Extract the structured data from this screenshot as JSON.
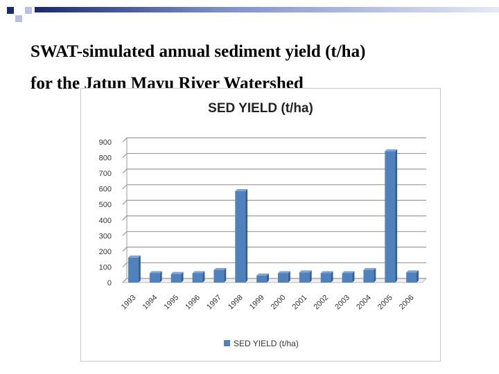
{
  "slide": {
    "title_line1": "SWAT-simulated annual sediment yield (t/ha)",
    "title_line2": "for the Jatun Mayu River Watershed",
    "colors": {
      "bullet_dark": "#1a2b6d",
      "bullet_light": "#b7c1e0",
      "bar": "#4f81bd",
      "bar_top": "#7ea3d5",
      "bar_side": "#365f91"
    }
  },
  "chart_data": {
    "type": "bar",
    "title": "SED YIELD (t/ha)",
    "categories": [
      "1993",
      "1994",
      "1995",
      "1996",
      "1997",
      "1998",
      "1999",
      "2000",
      "2001",
      "2002",
      "2003",
      "2004",
      "2005",
      "2006"
    ],
    "series": [
      {
        "name": "SED YIELD (t/ha)",
        "values": [
          160,
          60,
          55,
          60,
          80,
          585,
          45,
          60,
          65,
          60,
          60,
          80,
          840,
          65
        ]
      }
    ],
    "ylim": [
      0,
      900
    ],
    "yticks": [
      0,
      100,
      200,
      300,
      400,
      500,
      600,
      700,
      800,
      900
    ],
    "grid": true,
    "legend": "bottom",
    "style": "3d-column"
  }
}
